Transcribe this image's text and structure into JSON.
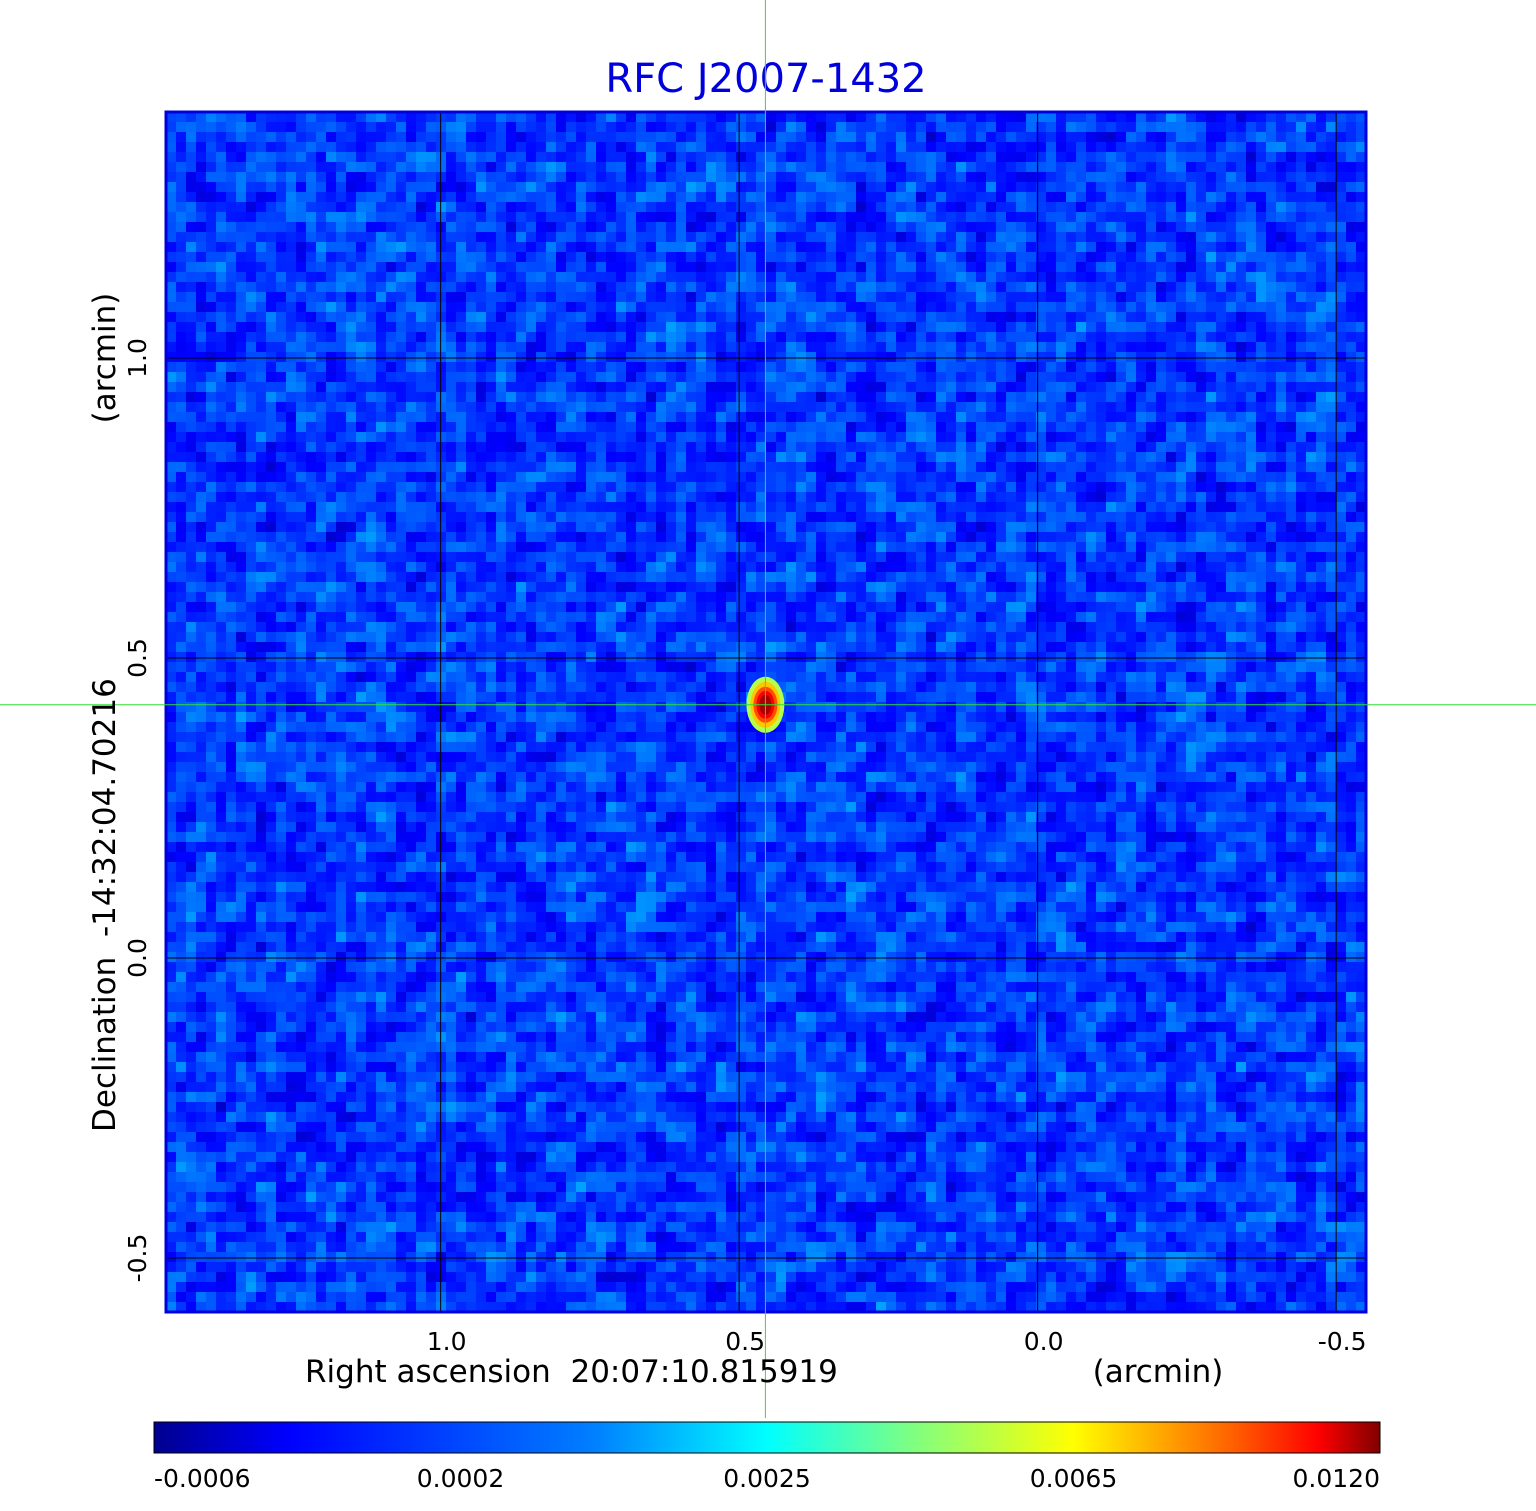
{
  "chart_data": {
    "type": "heatmap",
    "title": "RFC J2007-1432",
    "xlabel": "Right ascension  20:07:10.815919",
    "xunit": "(arcmin)",
    "ylabel": "Declination  -14:32:04.70216",
    "yunit": "(arcmin)",
    "xlim": [
      1.46,
      -0.55
    ],
    "ylim": [
      -0.59,
      1.41
    ],
    "x_reversed": true,
    "x_ticks": [
      {
        "value": 1.0,
        "label": "1.0"
      },
      {
        "value": 0.5,
        "label": "0.5"
      },
      {
        "value": 0.0,
        "label": "0.0"
      },
      {
        "value": -0.5,
        "label": "-0.5"
      }
    ],
    "y_ticks": [
      {
        "value": 1.0,
        "label": "1.0"
      },
      {
        "value": 0.5,
        "label": "0.5"
      },
      {
        "value": 0.0,
        "label": "0.0"
      },
      {
        "value": -0.5,
        "label": "-0.5"
      }
    ],
    "grid": true,
    "grid_color": "#000000",
    "frame_color": "#0000dd",
    "crosshair": {
      "x": 0.456,
      "y": 0.422,
      "color": "#33dd33"
    },
    "source_peak": {
      "x": 0.456,
      "y": 0.422,
      "value": 0.012
    },
    "colormap": "jet",
    "colorbar": {
      "tick_labels": [
        "-0.0006",
        "0.0002",
        "0.0025",
        "0.0065",
        "0.0120"
      ],
      "min": -0.0006,
      "max": 0.012
    }
  }
}
